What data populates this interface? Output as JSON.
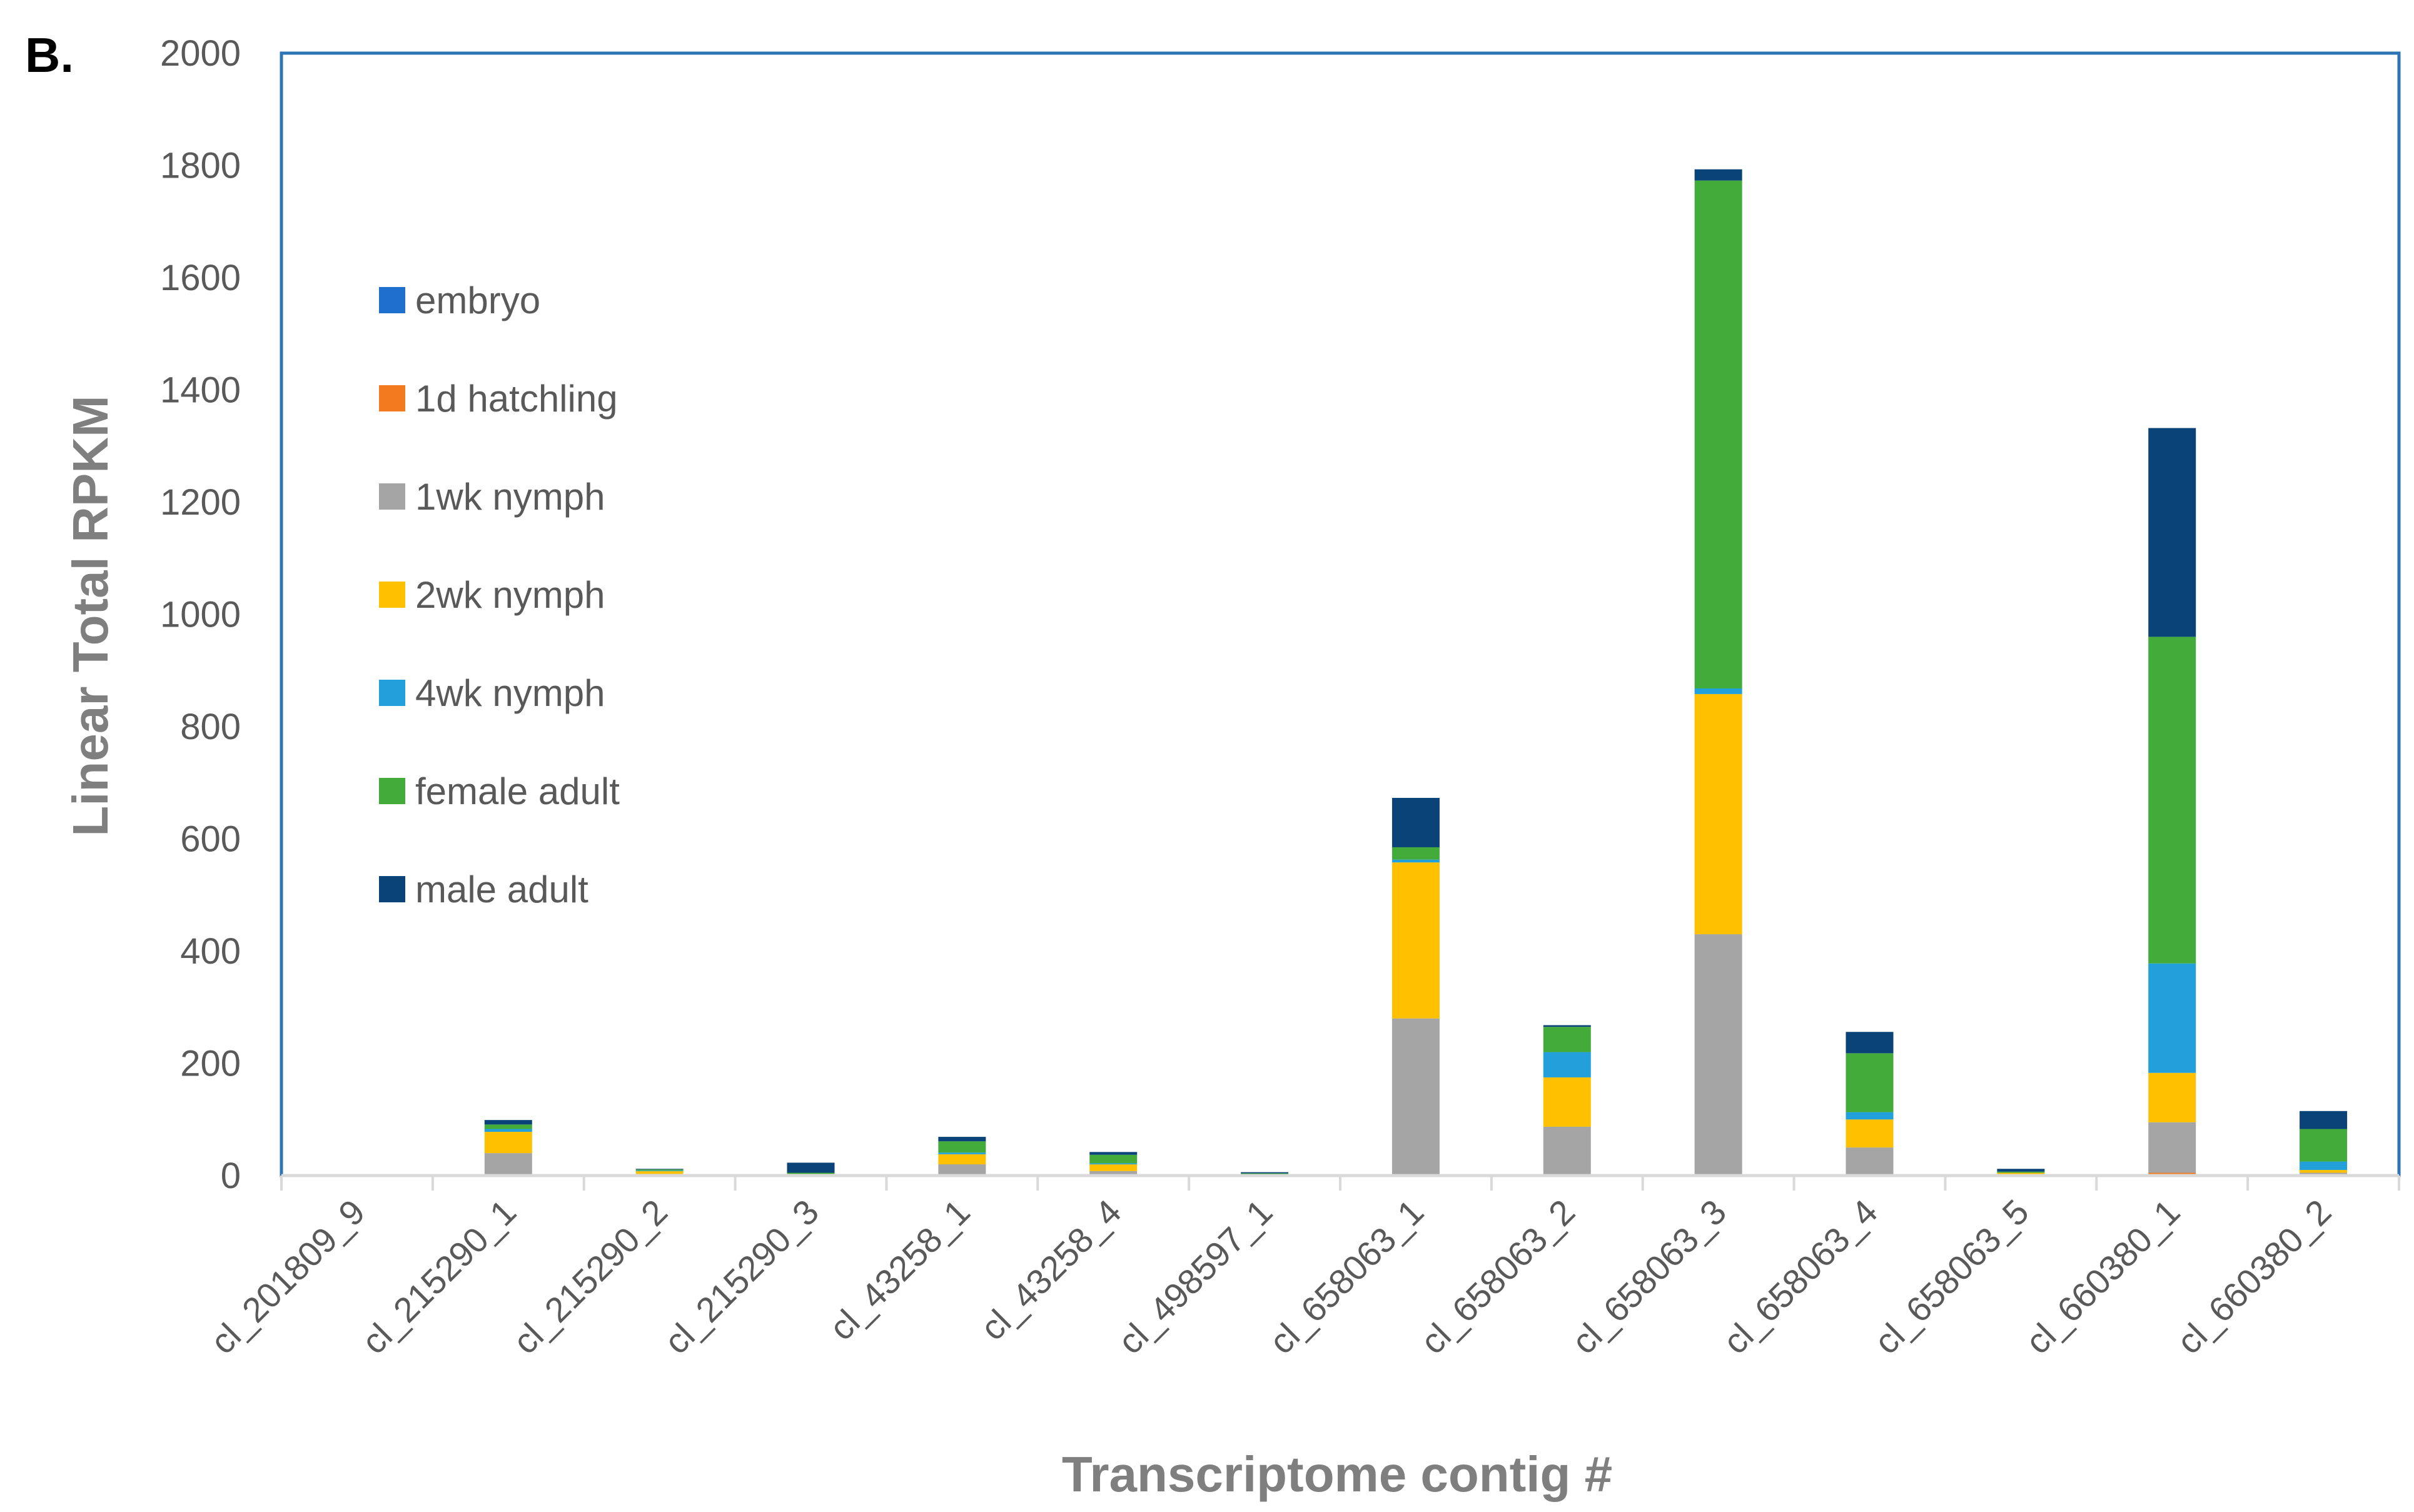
{
  "panel_label": "B.",
  "chart_data": {
    "type": "bar",
    "stacked": true,
    "title": "",
    "xlabel": "Transcriptome contig #",
    "ylabel": "Linear Total RPKM",
    "ylim": [
      0,
      2000
    ],
    "yticks": [
      0,
      200,
      400,
      600,
      800,
      1000,
      1200,
      1400,
      1600,
      1800,
      2000
    ],
    "grid": false,
    "legend_position": "upper-left",
    "categories": [
      "cl_201809_9",
      "cl_215290_1",
      "cl_215290_2",
      "cl_215290_3",
      "cl_43258_1",
      "cl_43258_4",
      "cl_498597_1",
      "cl_658063_1",
      "cl_658063_2",
      "cl_658063_3",
      "cl_658063_4",
      "cl_658063_5",
      "cl_660380_1",
      "cl_660380_2"
    ],
    "series": [
      {
        "name": "embryo",
        "color": "#1f6fcf",
        "values": [
          0,
          0,
          0,
          0,
          0,
          0,
          0,
          0,
          0,
          0,
          0,
          0,
          0,
          0
        ]
      },
      {
        "name": "1d hatchling",
        "color": "#f47a20",
        "values": [
          0,
          0,
          0,
          0,
          0,
          0,
          0,
          0,
          0,
          0,
          0,
          0,
          5,
          0
        ]
      },
      {
        "name": "1wk nymph",
        "color": "#a5a5a5",
        "values": [
          0,
          40,
          3,
          2,
          20,
          8,
          1,
          280,
          87,
          430,
          50,
          2,
          90,
          5
        ]
      },
      {
        "name": "2wk nymph",
        "color": "#ffc000",
        "values": [
          0,
          38,
          5,
          1,
          18,
          12,
          1,
          278,
          88,
          428,
          50,
          3,
          88,
          5
        ]
      },
      {
        "name": "4wk nymph",
        "color": "#22a0dc",
        "values": [
          0,
          5,
          1,
          0,
          3,
          2,
          0,
          5,
          45,
          10,
          13,
          0,
          195,
          15
        ]
      },
      {
        "name": "female adult",
        "color": "#43ab3a",
        "values": [
          0,
          8,
          2,
          2,
          20,
          15,
          2,
          22,
          45,
          905,
          105,
          2,
          582,
          58
        ]
      },
      {
        "name": "male adult",
        "color": "#0a4378",
        "values": [
          0,
          8,
          1,
          18,
          8,
          5,
          2,
          88,
          3,
          20,
          38,
          5,
          372,
          32
        ]
      }
    ]
  }
}
